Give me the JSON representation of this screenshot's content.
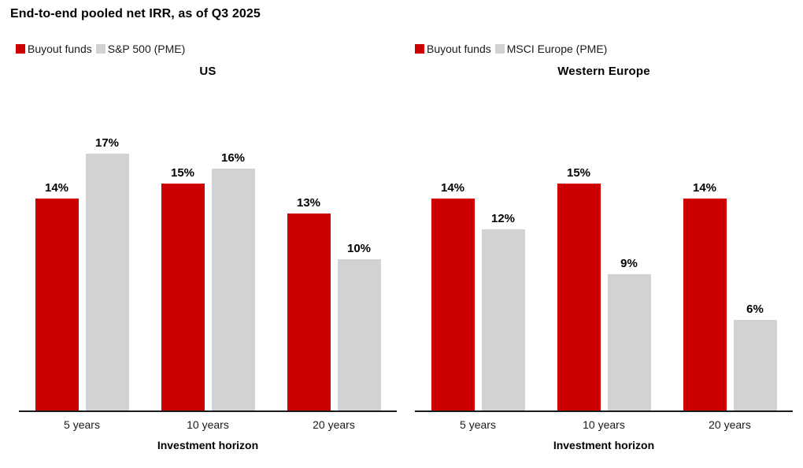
{
  "page": {
    "title": "End-to-end pooled net IRR, as of Q3 2025"
  },
  "colors": {
    "buyout_red": "#cc0000",
    "pme_gray": "#d2d2d0",
    "axis": "#1a1a1a"
  },
  "chart_data": [
    {
      "type": "bar",
      "title": "US",
      "categories": [
        "5 years",
        "10 years",
        "20 years"
      ],
      "series": [
        {
          "name": "Buyout funds",
          "color": "#cc0000",
          "values": [
            14,
            15,
            13
          ]
        },
        {
          "name": "S&P 500 (PME)",
          "color": "#d2d2d0",
          "values": [
            17,
            16,
            10
          ]
        }
      ],
      "value_suffix": "%",
      "xlabel": "Investment horizon",
      "ylim": [
        0,
        17.5
      ],
      "grid": false,
      "y_axis_shown": false,
      "legend_position": "top-left"
    },
    {
      "type": "bar",
      "title": "Western Europe",
      "categories": [
        "5 years",
        "10 years",
        "20 years"
      ],
      "series": [
        {
          "name": "Buyout funds",
          "color": "#cc0000",
          "values": [
            14,
            15,
            14
          ]
        },
        {
          "name": "MSCI Europe (PME)",
          "color": "#d2d2d0",
          "values": [
            12,
            9,
            6
          ]
        }
      ],
      "value_suffix": "%",
      "xlabel": "Investment horizon",
      "ylim": [
        0,
        17.5
      ],
      "grid": false,
      "y_axis_shown": false,
      "legend_position": "top-left"
    }
  ]
}
